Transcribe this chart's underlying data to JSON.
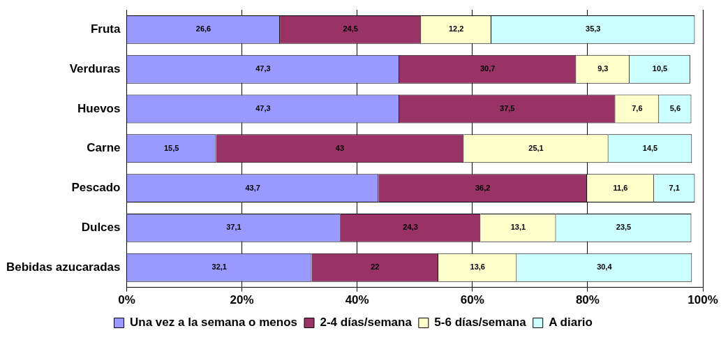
{
  "chart_data": {
    "type": "bar",
    "orientation": "horizontal",
    "stacked": true,
    "categories": [
      "Fruta",
      "Verduras",
      "Huevos",
      "Carne",
      "Pescado",
      "Dulces",
      "Bebidas azucaradas"
    ],
    "series": [
      {
        "name": "Una vez a la semana o menos",
        "color": "#9999ff",
        "values": [
          26.6,
          47.3,
          47.3,
          15.5,
          43.7,
          37.1,
          32.1
        ],
        "value_labels": [
          "26,6",
          "47,3",
          "47,3",
          "15,5",
          "43,7",
          "37,1",
          "32,1"
        ]
      },
      {
        "name": "2-4 días/semana",
        "color": "#993366",
        "values": [
          24.5,
          30.7,
          37.5,
          43,
          36.2,
          24.3,
          22
        ],
        "value_labels": [
          "24,5",
          "30,7",
          "37,5",
          "43",
          "36,2",
          "24,3",
          "22"
        ]
      },
      {
        "name": "5-6 días/semana",
        "color": "#ffffcc",
        "values": [
          12.2,
          9.3,
          7.6,
          25.1,
          11.6,
          13.1,
          13.6
        ],
        "value_labels": [
          "12,2",
          "9,3",
          "7,6",
          "25,1",
          "11,6",
          "13,1",
          "13,6"
        ]
      },
      {
        "name": "A diario",
        "color": "#ccffff",
        "values": [
          35.3,
          10.5,
          5.6,
          14.5,
          7.1,
          23.5,
          30.4
        ],
        "value_labels": [
          "35,3",
          "10,5",
          "5,6",
          "14,5",
          "7,1",
          "23,5",
          "30,4"
        ]
      }
    ],
    "xlim": [
      0,
      100
    ],
    "xticks": [
      {
        "value": 0,
        "label": "0%"
      },
      {
        "value": 20,
        "label": "20%"
      },
      {
        "value": 40,
        "label": "40%"
      },
      {
        "value": 60,
        "label": "60%"
      },
      {
        "value": 80,
        "label": "80%"
      },
      {
        "value": 100,
        "label": "100%"
      }
    ],
    "grid": "x",
    "legend": "bottom"
  }
}
